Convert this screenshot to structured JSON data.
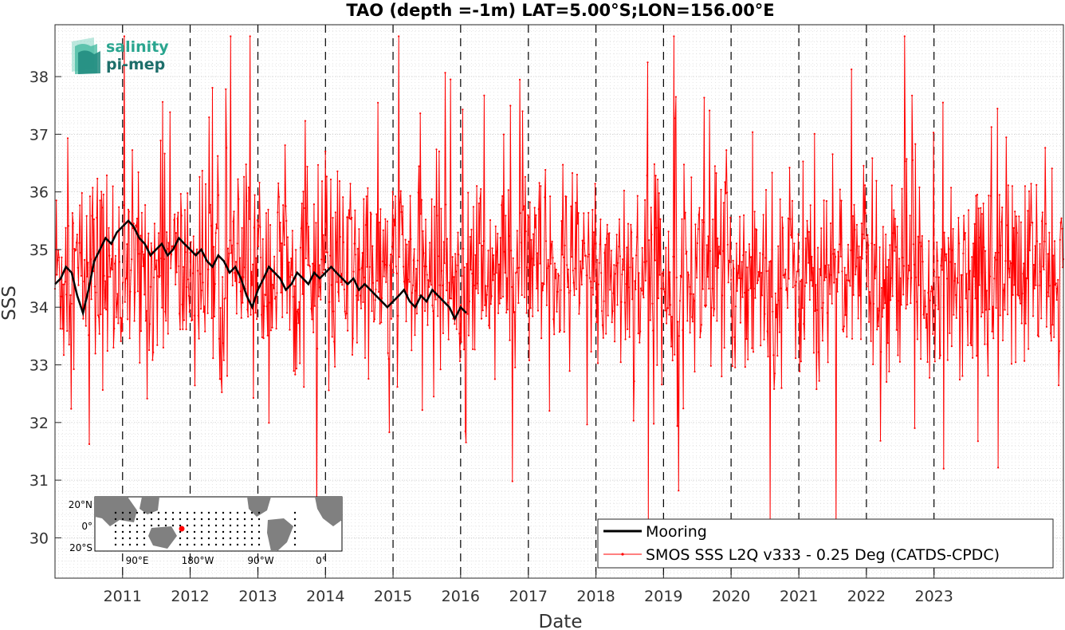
{
  "chart_data": {
    "type": "line",
    "title": "TAO (depth =-1m) LAT=5.00°S;LON=156.00°E",
    "xlabel": "Date",
    "ylabel": "SSS",
    "xlim": [
      "2010-01-01",
      "2024-11-30"
    ],
    "ylim": [
      29.3,
      38.9
    ],
    "grid": true,
    "minor_grid": true,
    "legend_position": "bottom-right",
    "x_tick_labels": [
      "2011",
      "2012",
      "2013",
      "2014",
      "2015",
      "2016",
      "2017",
      "2018",
      "2019",
      "2020",
      "2021",
      "2022",
      "2023"
    ],
    "x_tick_dates": [
      "2011-01-01",
      "2012-01-01",
      "2013-01-01",
      "2014-01-01",
      "2015-01-01",
      "2016-01-01",
      "2017-01-01",
      "2018-01-01",
      "2019-01-01",
      "2020-01-01",
      "2021-01-01",
      "2022-01-01",
      "2023-01-01"
    ],
    "y_ticks": [
      30,
      31,
      32,
      33,
      34,
      35,
      36,
      37,
      38
    ],
    "year_boundaries_dashed": true,
    "series": [
      {
        "name": "Mooring",
        "color": "#000000",
        "style": "thick-line",
        "x": [
          "2010-01-01",
          "2010-02-01",
          "2010-03-01",
          "2010-04-01",
          "2010-05-01",
          "2010-06-01",
          "2010-07-01",
          "2010-08-01",
          "2010-09-01",
          "2010-10-01",
          "2010-11-01",
          "2010-12-01",
          "2011-01-01",
          "2011-02-01",
          "2011-03-01",
          "2011-04-01",
          "2011-05-01",
          "2011-06-01",
          "2011-07-01",
          "2011-08-01",
          "2011-09-01",
          "2011-10-01",
          "2011-11-01",
          "2011-12-01",
          "2012-01-01",
          "2012-02-01",
          "2012-03-01",
          "2012-04-01",
          "2012-05-01",
          "2012-06-01",
          "2012-07-01",
          "2012-08-01",
          "2012-09-01",
          "2012-10-01",
          "2012-11-01",
          "2012-12-01",
          "2013-01-01",
          "2013-02-01",
          "2013-03-01",
          "2013-04-01",
          "2013-05-01",
          "2013-06-01",
          "2013-07-01",
          "2013-08-01",
          "2013-09-01",
          "2013-10-01",
          "2013-11-01",
          "2013-12-01",
          "2014-01-01",
          "2014-02-01",
          "2014-03-01",
          "2014-04-01",
          "2014-05-01",
          "2014-06-01",
          "2014-07-01",
          "2014-08-01",
          "2014-09-01",
          "2014-10-01",
          "2014-11-01",
          "2014-12-01",
          "2015-01-01",
          "2015-02-01",
          "2015-03-01",
          "2015-04-01",
          "2015-05-01",
          "2015-06-01",
          "2015-07-01",
          "2015-08-01",
          "2015-09-01",
          "2015-10-01",
          "2015-11-01",
          "2015-12-01",
          "2016-01-01",
          "2016-02-01"
        ],
        "values": [
          34.4,
          34.5,
          34.7,
          34.6,
          34.2,
          33.9,
          34.3,
          34.8,
          35.0,
          35.2,
          35.1,
          35.3,
          35.4,
          35.5,
          35.4,
          35.2,
          35.1,
          34.9,
          35.0,
          35.1,
          34.9,
          35.0,
          35.2,
          35.1,
          35.0,
          34.9,
          35.0,
          34.8,
          34.7,
          34.9,
          34.8,
          34.6,
          34.7,
          34.5,
          34.2,
          34.0,
          34.3,
          34.5,
          34.7,
          34.6,
          34.5,
          34.3,
          34.4,
          34.6,
          34.5,
          34.4,
          34.6,
          34.5,
          34.6,
          34.7,
          34.6,
          34.5,
          34.4,
          34.5,
          34.3,
          34.4,
          34.3,
          34.2,
          34.1,
          34.0,
          34.1,
          34.2,
          34.3,
          34.1,
          34.0,
          34.2,
          34.1,
          34.3,
          34.2,
          34.1,
          34.0,
          33.8,
          34.0,
          33.9
        ]
      },
      {
        "name": "SMOS SSS L2Q v333 - 0.25 Deg (CATDS-CPDC)",
        "color": "#ff0000",
        "style": "thin-line-with-dots",
        "description_note": "noisy daily retrievals",
        "x_range": [
          "2010-01-01",
          "2024-11-30"
        ],
        "mean": 34.6,
        "spread_1sd": 0.9,
        "min": 29.6,
        "max": 38.7
      }
    ]
  },
  "legend": {
    "items": [
      {
        "label": "Mooring",
        "color": "#000000"
      },
      {
        "label": "SMOS SSS L2Q v333 - 0.25 Deg (CATDS-CPDC)",
        "color": "#ff0000"
      }
    ]
  },
  "logo": {
    "line1": "salinity",
    "line2": "pi-mep",
    "color1": "#2aa58f",
    "color2": "#1d6e6a"
  },
  "inset_map": {
    "lat_labels": [
      "20°N",
      "0°",
      "20°S"
    ],
    "lon_labels": [
      "90°E",
      "180°W",
      "90°W",
      "0°"
    ],
    "mooring_marker_color": "#ff0000",
    "land_color": "#808080"
  }
}
